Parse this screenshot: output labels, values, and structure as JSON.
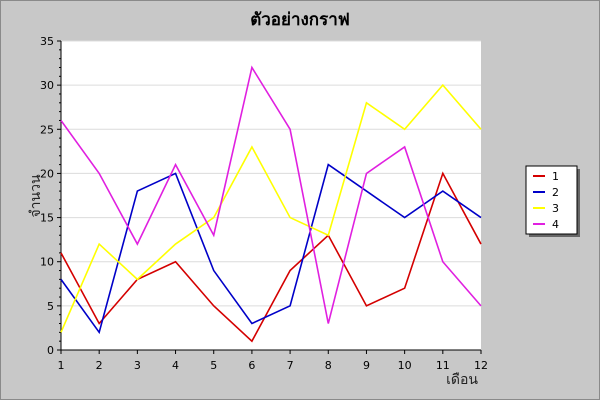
{
  "chart_data": {
    "type": "line",
    "title": "ตัวอย่างกราฟ",
    "xlabel": "เดือน",
    "ylabel": "จำนวน",
    "x": [
      1,
      2,
      3,
      4,
      5,
      6,
      7,
      8,
      9,
      10,
      11,
      12
    ],
    "xlim": [
      1,
      12
    ],
    "ylim": [
      0,
      35
    ],
    "yticks": [
      0,
      5,
      10,
      15,
      20,
      25,
      30,
      35
    ],
    "grid": true,
    "legend_position": "right",
    "series": [
      {
        "name": "1",
        "color": "#d40000",
        "values": [
          11,
          3,
          8,
          10,
          5,
          1,
          9,
          13,
          5,
          7,
          20,
          12
        ]
      },
      {
        "name": "2",
        "color": "#0000c8",
        "values": [
          8,
          2,
          18,
          20,
          9,
          3,
          5,
          21,
          18,
          15,
          18,
          15
        ]
      },
      {
        "name": "3",
        "color": "#ffff00",
        "values": [
          2,
          12,
          8,
          12,
          15,
          23,
          15,
          13,
          28,
          25,
          30,
          25
        ]
      },
      {
        "name": "4",
        "color": "#e020e0",
        "values": [
          26,
          20,
          12,
          21,
          13,
          32,
          25,
          3,
          20,
          23,
          10,
          5
        ]
      }
    ]
  }
}
